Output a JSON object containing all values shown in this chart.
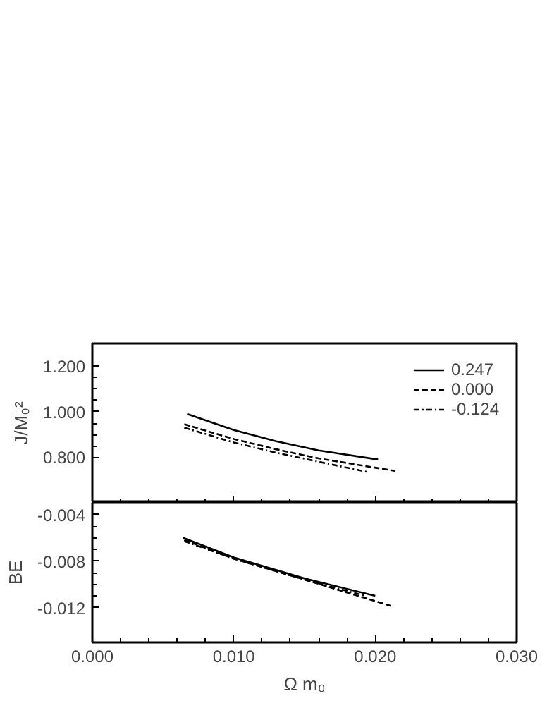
{
  "chart_data": [
    {
      "type": "line",
      "ylabel": "J/M₀²",
      "xlim": [
        0,
        0.03
      ],
      "xticks": [
        {
          "value": 0,
          "label": null
        },
        {
          "value": 0.01,
          "label": null
        },
        {
          "value": 0.02,
          "label": null
        },
        {
          "value": 0.03,
          "label": null
        }
      ],
      "ylim": [
        0.6,
        1.3
      ],
      "yticks": [
        {
          "value": 0.8,
          "label": "0.800"
        },
        {
          "value": 1.0,
          "label": "1.000"
        },
        {
          "value": 1.2,
          "label": "1.200"
        }
      ],
      "tick_labels": "y",
      "grid": false,
      "legend": "top right",
      "series": [
        {
          "name": "0.247",
          "color": "#000000",
          "line_style": "solid",
          "x": [
            0.0067,
            0.01,
            0.013,
            0.016,
            0.0202
          ],
          "values": [
            0.99,
            0.92,
            0.87,
            0.83,
            0.79
          ]
        },
        {
          "name": "0.000",
          "color": "#000000",
          "line_style": "dashed",
          "x": [
            0.0065,
            0.01,
            0.013,
            0.016,
            0.0214
          ],
          "values": [
            0.945,
            0.88,
            0.835,
            0.795,
            0.74
          ]
        },
        {
          "name": "-0.124",
          "color": "#000000",
          "line_style": "dashdot",
          "x": [
            0.0065,
            0.01,
            0.013,
            0.016,
            0.0195
          ],
          "values": [
            0.93,
            0.865,
            0.82,
            0.78,
            0.735
          ]
        }
      ]
    },
    {
      "type": "line",
      "xlabel": "Ω m₀",
      "ylabel": "BE",
      "xlim": [
        0,
        0.03
      ],
      "xticks": [
        {
          "value": 0,
          "label": "0.000"
        },
        {
          "value": 0.01,
          "label": "0.010"
        },
        {
          "value": 0.02,
          "label": "0.020"
        },
        {
          "value": 0.03,
          "label": "0.030"
        }
      ],
      "ylim": [
        -0.015,
        -0.003
      ],
      "yticks": [
        {
          "value": -0.004,
          "label": "-0.004"
        },
        {
          "value": -0.008,
          "label": "-0.008"
        },
        {
          "value": -0.012,
          "label": "-0.012"
        }
      ],
      "grid": false,
      "legend": false,
      "series": [
        {
          "color": "#000000",
          "line_style": "solid",
          "x": [
            0.0064,
            0.01,
            0.015,
            0.02
          ],
          "values": [
            -0.006,
            -0.0077,
            -0.0095,
            -0.011
          ]
        },
        {
          "color": "#000000",
          "line_style": "dashed",
          "x": [
            0.0065,
            0.01,
            0.015,
            0.0212
          ],
          "values": [
            -0.0062,
            -0.0078,
            -0.0096,
            -0.0119
          ]
        },
        {
          "color": "#000000",
          "line_style": "dashdot",
          "x": [
            0.0065,
            0.01,
            0.015,
            0.0193
          ],
          "values": [
            -0.0063,
            -0.0078,
            -0.0096,
            -0.011
          ]
        }
      ]
    }
  ]
}
